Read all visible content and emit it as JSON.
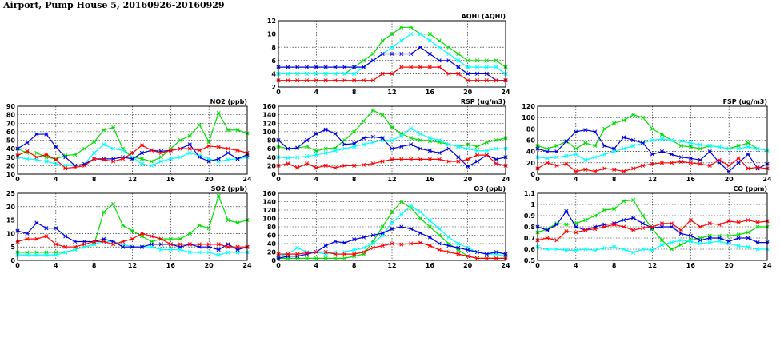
{
  "page": {
    "title": "Airport, Pump House 5, 20160926-20160929"
  },
  "colors": {
    "red": "#ff0000",
    "green": "#00dd00",
    "blue": "#0000dd",
    "cyan": "#00ffff"
  },
  "chart_data": [
    {
      "id": "aqhi",
      "type": "line",
      "title": "AQHI (AQHI)",
      "xlim": [
        0,
        24
      ],
      "xticks": [
        "0",
        "4",
        "8",
        "12",
        "16",
        "20",
        "24"
      ],
      "ylim": [
        2,
        12
      ],
      "yticks": [
        "2",
        "4",
        "6",
        "8",
        "10",
        "12"
      ],
      "x": [
        0,
        1,
        2,
        3,
        4,
        5,
        6,
        7,
        8,
        9,
        10,
        11,
        12,
        13,
        14,
        15,
        16,
        17,
        18,
        19,
        20,
        21,
        22,
        23,
        24
      ],
      "series": [
        {
          "color": "green",
          "values": [
            4,
            4,
            4,
            4,
            4,
            4,
            4,
            4,
            5,
            6,
            7,
            9,
            10,
            11,
            11,
            10,
            10,
            9,
            8,
            7,
            6,
            6,
            6,
            6,
            5
          ]
        },
        {
          "color": "cyan",
          "values": [
            4,
            4,
            4,
            4,
            4,
            4,
            4,
            4,
            4,
            5,
            6,
            7,
            8,
            9,
            10,
            10,
            9,
            8,
            7,
            6,
            5,
            5,
            5,
            5,
            4
          ]
        },
        {
          "color": "blue",
          "values": [
            5,
            5,
            5,
            5,
            5,
            5,
            5,
            5,
            5,
            5,
            6,
            7,
            7,
            7,
            7,
            8,
            7,
            6,
            6,
            5,
            4,
            4,
            4,
            3,
            3
          ]
        },
        {
          "color": "red",
          "values": [
            3,
            3,
            3,
            3,
            3,
            3,
            3,
            3,
            3,
            3,
            3,
            4,
            4,
            5,
            5,
            5,
            5,
            5,
            4,
            4,
            3,
            3,
            3,
            3,
            3
          ]
        }
      ]
    },
    {
      "id": "no2",
      "type": "line",
      "title": "NO2 (ppb)",
      "xlim": [
        0,
        24
      ],
      "xticks": [
        "0",
        "4",
        "8",
        "12",
        "16",
        "20",
        "24"
      ],
      "ylim": [
        10,
        90
      ],
      "yticks": [
        "10",
        "20",
        "30",
        "40",
        "50",
        "60",
        "70",
        "80",
        "90"
      ],
      "x": [
        0,
        1,
        2,
        3,
        4,
        5,
        6,
        7,
        8,
        9,
        10,
        11,
        12,
        13,
        14,
        15,
        16,
        17,
        18,
        19,
        20,
        21,
        22,
        23,
        24
      ],
      "series": [
        {
          "color": "green",
          "values": [
            40,
            35,
            35,
            30,
            28,
            32,
            33,
            40,
            48,
            62,
            65,
            40,
            30,
            28,
            25,
            30,
            40,
            50,
            55,
            68,
            48,
            82,
            62,
            62,
            58
          ]
        },
        {
          "color": "cyan",
          "values": [
            30,
            28,
            27,
            25,
            22,
            20,
            20,
            22,
            35,
            45,
            40,
            38,
            30,
            22,
            20,
            25,
            28,
            30,
            35,
            32,
            28,
            25,
            27,
            28,
            30
          ]
        },
        {
          "color": "blue",
          "values": [
            40,
            47,
            57,
            57,
            42,
            30,
            20,
            22,
            28,
            28,
            28,
            30,
            28,
            35,
            38,
            37,
            38,
            40,
            45,
            30,
            25,
            28,
            35,
            28,
            33
          ]
        },
        {
          "color": "red",
          "values": [
            32,
            37,
            30,
            33,
            27,
            17,
            18,
            20,
            28,
            27,
            25,
            28,
            35,
            44,
            38,
            35,
            38,
            40,
            40,
            38,
            43,
            42,
            40,
            38,
            35
          ]
        }
      ]
    },
    {
      "id": "rsp",
      "type": "line",
      "title": "RSP (ug/m3)",
      "xlim": [
        0,
        24
      ],
      "xticks": [
        "0",
        "4",
        "8",
        "12",
        "16",
        "20",
        "24"
      ],
      "ylim": [
        0,
        160
      ],
      "yticks": [
        "0",
        "20",
        "40",
        "60",
        "80",
        "100",
        "120",
        "140",
        "160"
      ],
      "x": [
        0,
        1,
        2,
        3,
        4,
        5,
        6,
        7,
        8,
        9,
        10,
        11,
        12,
        13,
        14,
        15,
        16,
        17,
        18,
        19,
        20,
        21,
        22,
        23,
        24
      ],
      "series": [
        {
          "color": "green",
          "values": [
            65,
            60,
            62,
            65,
            55,
            60,
            62,
            80,
            100,
            125,
            150,
            140,
            110,
            95,
            85,
            80,
            78,
            75,
            70,
            65,
            70,
            65,
            75,
            80,
            85
          ]
        },
        {
          "color": "cyan",
          "values": [
            40,
            38,
            40,
            42,
            45,
            50,
            55,
            60,
            65,
            70,
            75,
            80,
            80,
            90,
            108,
            95,
            85,
            80,
            70,
            65,
            60,
            55,
            55,
            60,
            60
          ]
        },
        {
          "color": "blue",
          "values": [
            80,
            60,
            62,
            80,
            95,
            105,
            95,
            70,
            72,
            85,
            88,
            85,
            60,
            65,
            70,
            60,
            55,
            50,
            60,
            40,
            18,
            30,
            45,
            35,
            40
          ]
        },
        {
          "color": "red",
          "values": [
            20,
            25,
            15,
            25,
            15,
            20,
            15,
            20,
            20,
            22,
            25,
            30,
            35,
            35,
            35,
            35,
            35,
            35,
            30,
            30,
            35,
            45,
            45,
            25,
            20
          ]
        }
      ]
    },
    {
      "id": "fsp",
      "type": "line",
      "title": "FSP (ug/m3)",
      "xlim": [
        0,
        24
      ],
      "xticks": [
        "0",
        "4",
        "8",
        "12",
        "16",
        "20",
        "24"
      ],
      "ylim": [
        0,
        120
      ],
      "yticks": [
        "0",
        "20",
        "40",
        "60",
        "80",
        "100",
        "120"
      ],
      "x": [
        0,
        1,
        2,
        3,
        4,
        5,
        6,
        7,
        8,
        9,
        10,
        11,
        12,
        13,
        14,
        15,
        16,
        17,
        18,
        19,
        20,
        21,
        22,
        23,
        24
      ],
      "series": [
        {
          "color": "green",
          "values": [
            50,
            45,
            50,
            58,
            45,
            55,
            50,
            80,
            90,
            95,
            105,
            100,
            80,
            70,
            60,
            50,
            48,
            45,
            50,
            48,
            45,
            50,
            55,
            45,
            42
          ]
        },
        {
          "color": "cyan",
          "values": [
            30,
            28,
            30,
            32,
            35,
            25,
            30,
            35,
            40,
            45,
            50,
            55,
            60,
            62,
            60,
            58,
            55,
            52,
            50,
            48,
            45,
            45,
            48,
            45,
            42
          ]
        },
        {
          "color": "blue",
          "values": [
            45,
            40,
            40,
            58,
            75,
            78,
            75,
            50,
            45,
            65,
            60,
            55,
            35,
            40,
            35,
            30,
            28,
            25,
            40,
            20,
            5,
            20,
            35,
            10,
            18
          ]
        },
        {
          "color": "red",
          "values": [
            10,
            20,
            15,
            18,
            5,
            8,
            5,
            10,
            8,
            5,
            10,
            15,
            18,
            20,
            20,
            22,
            20,
            18,
            15,
            25,
            15,
            28,
            10,
            12,
            10
          ]
        }
      ]
    },
    {
      "id": "so2",
      "type": "line",
      "title": "SO2 (ppb)",
      "xlim": [
        0,
        24
      ],
      "xticks": [
        "0",
        "4",
        "8",
        "12",
        "16",
        "20",
        "24"
      ],
      "ylim": [
        0,
        25
      ],
      "yticks": [
        "0",
        "5",
        "10",
        "15",
        "20",
        "25"
      ],
      "x": [
        0,
        1,
        2,
        3,
        4,
        5,
        6,
        7,
        8,
        9,
        10,
        11,
        12,
        13,
        14,
        15,
        16,
        17,
        18,
        19,
        20,
        21,
        22,
        23,
        24
      ],
      "series": [
        {
          "color": "green",
          "values": [
            3,
            3,
            3,
            3,
            3,
            3,
            4,
            5,
            6,
            18,
            21,
            13,
            11,
            9,
            7,
            8,
            8,
            8,
            10,
            13,
            12,
            24,
            15,
            14,
            15
          ]
        },
        {
          "color": "cyan",
          "values": [
            2,
            2,
            2,
            2,
            2,
            3,
            4,
            5,
            6,
            7,
            7,
            6,
            5,
            5,
            5,
            4,
            4,
            4,
            3,
            3,
            3,
            2,
            3,
            3,
            3
          ]
        },
        {
          "color": "blue",
          "values": [
            11,
            10,
            14,
            12,
            12,
            9,
            7,
            7,
            7,
            8,
            7,
            5,
            5,
            5,
            6,
            6,
            6,
            5,
            6,
            5,
            5,
            4,
            6,
            4,
            5
          ]
        },
        {
          "color": "red",
          "values": [
            7,
            8,
            8,
            9,
            6,
            5,
            5,
            6,
            7,
            7,
            6,
            7,
            8,
            10,
            9,
            8,
            6,
            6,
            6,
            6,
            6,
            6,
            5,
            5,
            5
          ]
        }
      ]
    },
    {
      "id": "o3",
      "type": "line",
      "title": "O3 (ppb)",
      "xlim": [
        0,
        24
      ],
      "xticks": [
        "0",
        "4",
        "8",
        "12",
        "16",
        "20",
        "24"
      ],
      "ylim": [
        0,
        160
      ],
      "yticks": [
        "0",
        "20",
        "40",
        "60",
        "80",
        "100",
        "120",
        "140",
        "160"
      ],
      "x": [
        0,
        1,
        2,
        3,
        4,
        5,
        6,
        7,
        8,
        9,
        10,
        11,
        12,
        13,
        14,
        15,
        16,
        17,
        18,
        19,
        20,
        21,
        22,
        23,
        24
      ],
      "series": [
        {
          "color": "green",
          "values": [
            5,
            5,
            5,
            5,
            5,
            5,
            5,
            5,
            10,
            15,
            45,
            80,
            115,
            140,
            125,
            100,
            80,
            60,
            40,
            25,
            10,
            5,
            5,
            5,
            5
          ]
        },
        {
          "color": "cyan",
          "values": [
            10,
            15,
            30,
            20,
            20,
            15,
            20,
            20,
            25,
            30,
            40,
            60,
            90,
            110,
            130,
            115,
            95,
            75,
            55,
            40,
            30,
            20,
            15,
            15,
            10
          ]
        },
        {
          "color": "blue",
          "values": [
            5,
            10,
            10,
            15,
            20,
            35,
            45,
            42,
            50,
            55,
            60,
            65,
            75,
            80,
            75,
            65,
            55,
            40,
            35,
            30,
            25,
            20,
            15,
            20,
            15
          ]
        },
        {
          "color": "red",
          "values": [
            15,
            15,
            15,
            18,
            20,
            20,
            15,
            15,
            15,
            20,
            30,
            35,
            40,
            38,
            40,
            42,
            35,
            25,
            20,
            15,
            10,
            5,
            5,
            5,
            5
          ]
        }
      ]
    },
    {
      "id": "co",
      "type": "line",
      "title": "CO (ppm)",
      "xlim": [
        0,
        24
      ],
      "xticks": [
        "0",
        "4",
        "8",
        "12",
        "16",
        "20",
        "24"
      ],
      "ylim": [
        0.5,
        1.1
      ],
      "yticks": [
        "0.5",
        "0.6",
        "0.7",
        "0.8",
        "0.9",
        "1",
        "1.1"
      ],
      "x": [
        0,
        1,
        2,
        3,
        4,
        5,
        6,
        7,
        8,
        9,
        10,
        11,
        12,
        13,
        14,
        15,
        16,
        17,
        18,
        19,
        20,
        21,
        22,
        23,
        24
      ],
      "series": [
        {
          "color": "green",
          "values": [
            0.75,
            0.78,
            0.83,
            0.82,
            0.83,
            0.86,
            0.9,
            0.95,
            0.96,
            1.03,
            1.04,
            0.9,
            0.78,
            0.68,
            0.6,
            0.64,
            0.68,
            0.7,
            0.72,
            0.72,
            0.72,
            0.73,
            0.75,
            0.8,
            0.8
          ]
        },
        {
          "color": "cyan",
          "values": [
            0.62,
            0.6,
            0.6,
            0.59,
            0.59,
            0.6,
            0.59,
            0.61,
            0.62,
            0.6,
            0.57,
            0.6,
            0.59,
            0.64,
            0.66,
            0.68,
            0.67,
            0.65,
            0.66,
            0.67,
            0.65,
            0.63,
            0.62,
            0.6,
            0.6
          ]
        },
        {
          "color": "blue",
          "values": [
            0.8,
            0.77,
            0.82,
            0.94,
            0.8,
            0.77,
            0.8,
            0.82,
            0.83,
            0.86,
            0.88,
            0.83,
            0.79,
            0.8,
            0.8,
            0.74,
            0.72,
            0.68,
            0.7,
            0.7,
            0.67,
            0.7,
            0.7,
            0.66,
            0.66
          ]
        },
        {
          "color": "red",
          "values": [
            0.68,
            0.7,
            0.68,
            0.76,
            0.75,
            0.77,
            0.78,
            0.8,
            0.82,
            0.8,
            0.77,
            0.79,
            0.8,
            0.83,
            0.83,
            0.77,
            0.86,
            0.8,
            0.83,
            0.82,
            0.85,
            0.84,
            0.86,
            0.84,
            0.85
          ]
        }
      ]
    }
  ]
}
